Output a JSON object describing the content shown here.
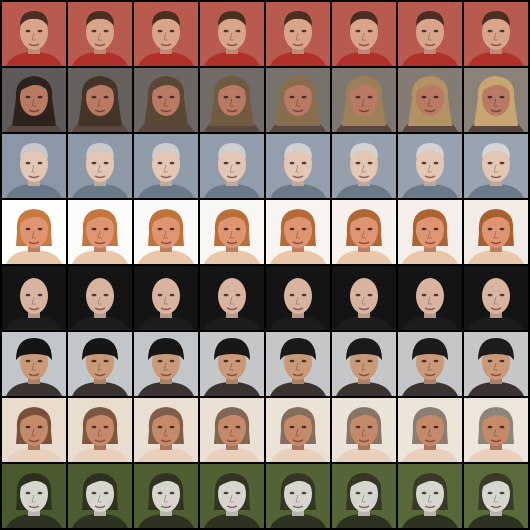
{
  "grid": {
    "rows": 8,
    "cols": 8,
    "background": "#000000",
    "rows_data": [
      {
        "subject": "young-man-dark-hair-red-background",
        "bg": "#b85a4e",
        "skin": "#d9a58a",
        "hair": "#4a2e22",
        "shirt": "#b0302a",
        "hair_style": "short",
        "hair_end": "#4a2e22",
        "bg_end": "#b85a4e"
      },
      {
        "subject": "woman-long-hair-dark-to-blonde",
        "bg": "#5e5a5a",
        "skin": "#b87a62",
        "hair": "#2e221c",
        "shirt": "#5a4840",
        "hair_style": "long",
        "hair_end": "#c9a670",
        "bg_end": "#8a8278"
      },
      {
        "subject": "older-man-grey-hair-smiling",
        "bg": "#8b97a6",
        "skin": "#e3c6b4",
        "hair": "#c8c8c8",
        "shirt": "#6b7a88",
        "hair_style": "short",
        "hair_end": "#d6d6d6",
        "bg_end": "#9aa4b0"
      },
      {
        "subject": "person-reddish-blonde-hair",
        "bg": "#ffffff",
        "skin": "#e09572",
        "hair": "#c97a3e",
        "shirt": "#e8c8a8",
        "hair_style": "medium",
        "hair_end": "#a86030",
        "bg_end": "#f2ece6"
      },
      {
        "subject": "bald-man-dark-background",
        "bg": "#141414",
        "skin": "#d8b4a0",
        "hair": "#d8b4a0",
        "shirt": "#1c1c1c",
        "hair_style": "bald",
        "hair_end": "#d8b4a0",
        "bg_end": "#141414"
      },
      {
        "subject": "person-black-bowl-hair",
        "bg": "#c2c6ca",
        "skin": "#c99978",
        "hair": "#141414",
        "shirt": "#3a3330",
        "hair_style": "bowl",
        "hair_end": "#1c1c1c",
        "bg_end": "#c6c6c6"
      },
      {
        "subject": "woman-light-background-hat",
        "bg": "#e9dccc",
        "skin": "#c48a6a",
        "hair": "#7a5038",
        "shirt": "#e8d0bc",
        "hair_style": "medium",
        "hair_end": "#8e8478",
        "bg_end": "#ece6dc"
      },
      {
        "subject": "face-green-foliage-background",
        "bg": "#4a5a2e",
        "skin": "#d6d6cf",
        "hair": "#2c301e",
        "shirt": "#2e3220",
        "hair_style": "medium",
        "hair_end": "#3a3a2a",
        "bg_end": "#5a6a3a"
      }
    ]
  }
}
